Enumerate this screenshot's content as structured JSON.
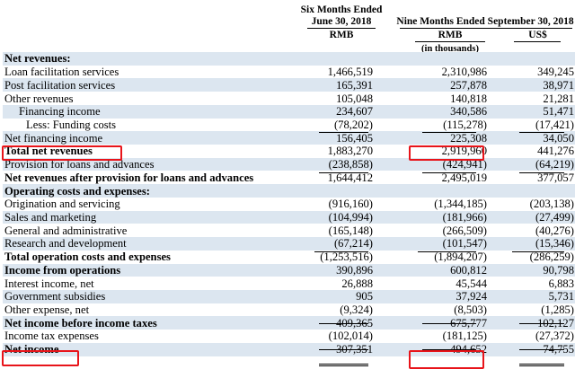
{
  "header": {
    "col1_line1": "Six Months Ended",
    "col1_line2": "June 30, 2018",
    "col1_currency": "RMB",
    "col23_title": "Nine Months Ended September 30, 2018",
    "col2_currency": "RMB",
    "col3_currency": "US$",
    "col2_units": "(in thousands)"
  },
  "rows": [
    {
      "label": "Net revenues:",
      "v1": "",
      "v2": "",
      "v3": ""
    },
    {
      "label": "Loan facilitation services",
      "v1": "1,466,519",
      "v2": "2,310,986",
      "v3": "349,245"
    },
    {
      "label": "Post facilitation services",
      "v1": "165,391",
      "v2": "257,878",
      "v3": "38,971"
    },
    {
      "label": "Other revenues",
      "v1": "105,048",
      "v2": "140,818",
      "v3": "21,281"
    },
    {
      "label": "Financing income",
      "v1": "234,607",
      "v2": "340,586",
      "v3": "51,471"
    },
    {
      "label": "Less: Funding costs",
      "v1": "(78,202)",
      "v2": "(115,278)",
      "v3": "(17,421)"
    },
    {
      "label": "Net financing income",
      "v1": "156,405",
      "v2": "225,308",
      "v3": "34,050"
    },
    {
      "label": "Total net revenues",
      "v1": "1,883,270",
      "v2": "2,919,960",
      "v3": "441,276"
    },
    {
      "label": "Provision for loans and advances",
      "v1": "(238,858)",
      "v2": "(424,941)",
      "v3": "(64,219)"
    },
    {
      "label": "Net revenues after provision for loans and advances",
      "v1": "1,644,412",
      "v2": "2,495,019",
      "v3": "377,057"
    },
    {
      "label": "Operating costs and expenses:",
      "v1": "",
      "v2": "",
      "v3": ""
    },
    {
      "label": "Origination and servicing",
      "v1": "(916,160)",
      "v2": "(1,344,185)",
      "v3": "(203,138)"
    },
    {
      "label": "Sales and marketing",
      "v1": "(104,994)",
      "v2": "(181,966)",
      "v3": "(27,499)"
    },
    {
      "label": "General and administrative",
      "v1": "(165,148)",
      "v2": "(266,509)",
      "v3": "(40,276)"
    },
    {
      "label": "Research and development",
      "v1": "(67,214)",
      "v2": "(101,547)",
      "v3": "(15,346)"
    },
    {
      "label": "Total operation costs and expenses",
      "v1": "(1,253,516)",
      "v2": "(1,894,207)",
      "v3": "(286,259)"
    },
    {
      "label": "Income from operations",
      "v1": "390,896",
      "v2": "600,812",
      "v3": "90,798"
    },
    {
      "label": "Interest income, net",
      "v1": "26,888",
      "v2": "45,544",
      "v3": "6,883"
    },
    {
      "label": "Government subsidies",
      "v1": "905",
      "v2": "37,924",
      "v3": "5,731"
    },
    {
      "label": "Other expense, net",
      "v1": "(9,324)",
      "v2": "(8,503)",
      "v3": "(1,285)"
    },
    {
      "label": "Net income before income taxes",
      "v1": "409,365",
      "v2": "675,777",
      "v3": "102,127"
    },
    {
      "label": "Income tax expenses",
      "v1": "(102,014)",
      "v2": "(181,125)",
      "v3": "(27,372)"
    },
    {
      "label": "Net income",
      "v1": "307,351",
      "v2": "494,652",
      "v3": "74,755"
    }
  ],
  "highlight_color": "#e8141a",
  "shade_color": "#dce6f0"
}
